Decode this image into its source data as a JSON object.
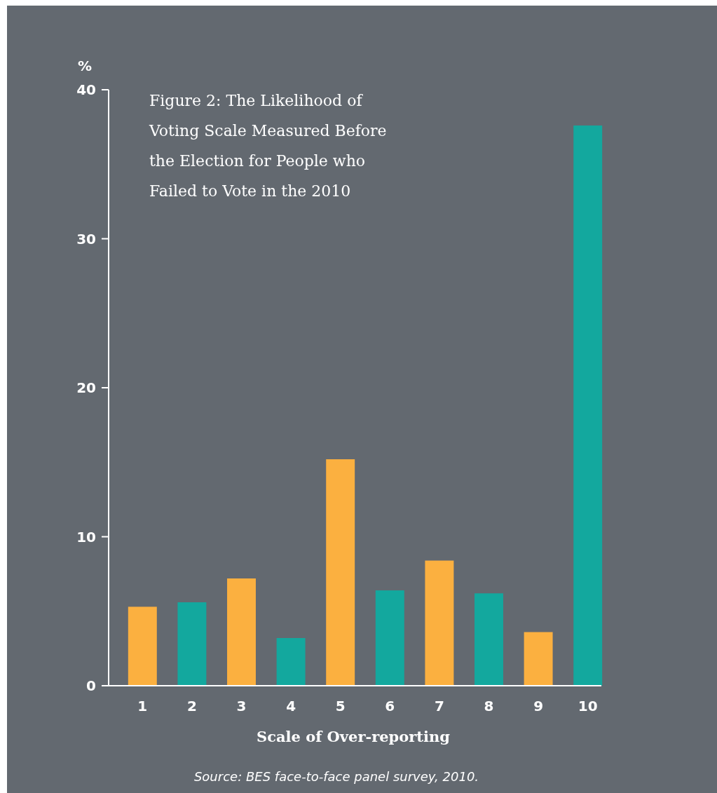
{
  "chart_data": {
    "type": "bar",
    "title": "Figure 2: The Likelihood of Voting Scale Measured Before the Election for People who Failed to Vote in the 2010",
    "xlabel": "Scale of Over-reporting",
    "ylabel": "%",
    "categories": [
      "1",
      "2",
      "3",
      "4",
      "5",
      "6",
      "7",
      "8",
      "9",
      "10"
    ],
    "values": [
      5.3,
      5.6,
      7.2,
      3.2,
      15.2,
      6.4,
      8.4,
      6.2,
      3.6,
      37.6
    ],
    "colors": [
      "#fbb040",
      "#13a89e",
      "#fbb040",
      "#13a89e",
      "#fbb040",
      "#13a89e",
      "#fbb040",
      "#13a89e",
      "#fbb040",
      "#13a89e"
    ],
    "ylim": [
      0,
      40
    ],
    "yticks": [
      0,
      10,
      20,
      30,
      40
    ],
    "grid": false,
    "annotations": [
      "Source: BES face-to-face panel survey, 2010."
    ]
  }
}
